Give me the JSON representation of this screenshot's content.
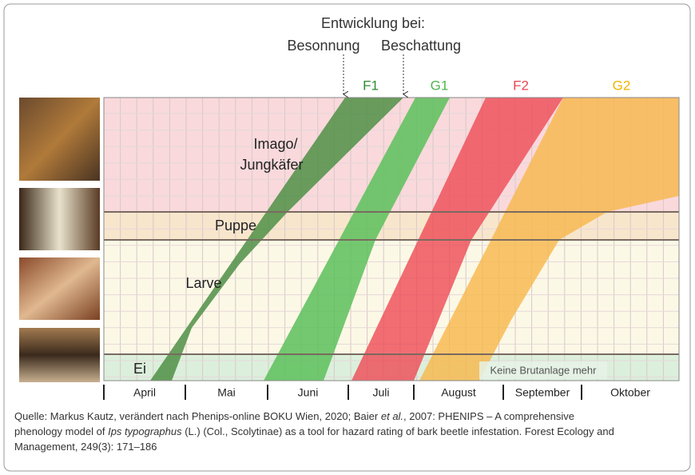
{
  "header": {
    "title": "Entwicklung bei:",
    "left": "Besonnung",
    "right": "Beschattung"
  },
  "generations": [
    "F1",
    "G1",
    "F2",
    "G2"
  ],
  "stages": {
    "imago_1": "Imago/",
    "imago_2": "Jungkäfer",
    "pupa": "Puppe",
    "larva": "Larve",
    "egg": "Ei"
  },
  "note": "Keine Brutanlage mehr",
  "months": [
    "April",
    "Mai",
    "Juni",
    "Juli",
    "August",
    "September",
    "Oktober"
  ],
  "caption": {
    "line1": [
      "Quelle: Markus Kautz, verändert nach Phenips-online BOKU Wien, 2020; Baier ",
      "et al.",
      ", 2007: PHENIPS – A comprehensive"
    ],
    "line2": [
      "phenology model of ",
      "Ips typographus",
      " (L.) (Col., Scolytinae) as a tool for hazard rating of bark beetle infestation. Forest Ecology and"
    ],
    "line3": [
      "Management, 249(3): 171–186"
    ]
  }
}
